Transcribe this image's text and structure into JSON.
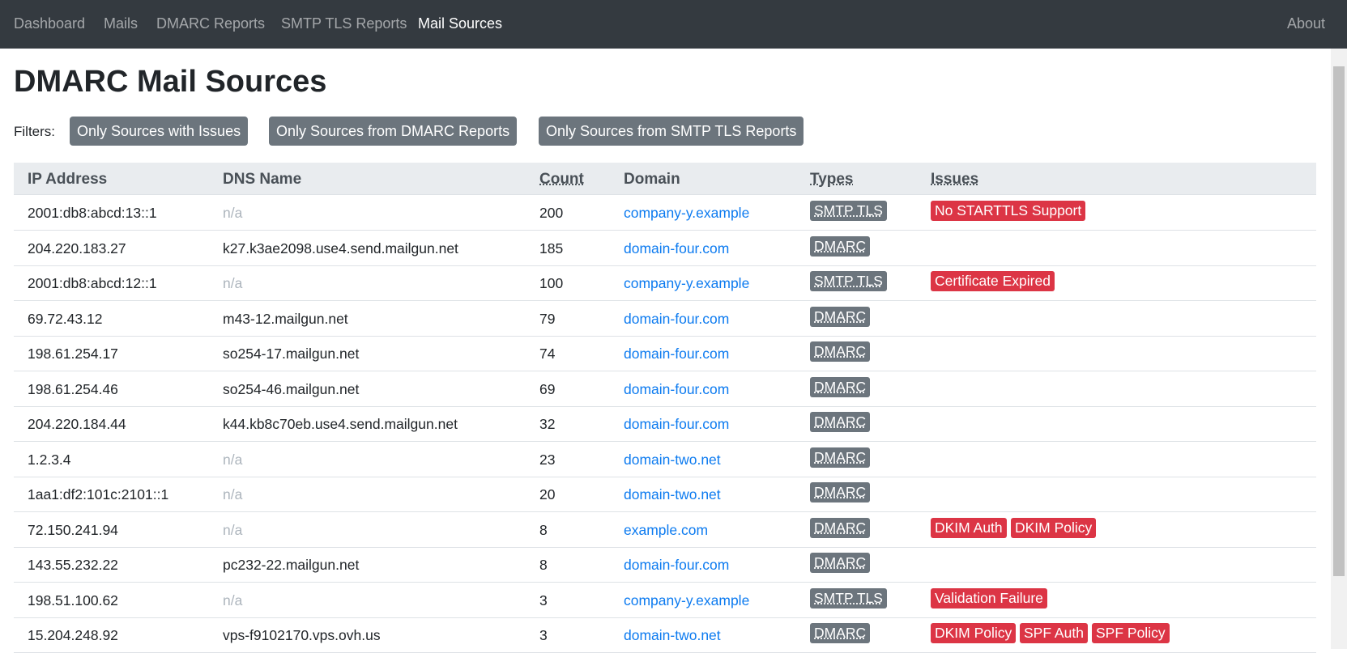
{
  "nav": {
    "items": [
      "Dashboard",
      "Mails",
      "DMARC Reports",
      "SMTP TLS Reports",
      "Mail Sources"
    ],
    "active": 4,
    "about": "About"
  },
  "header": {
    "title": "DMARC Mail Sources"
  },
  "filters": {
    "label": "Filters:",
    "buttons": [
      "Only Sources with Issues",
      "Only Sources from DMARC Reports",
      "Only Sources from SMTP TLS Reports"
    ]
  },
  "table": {
    "headers": [
      "IP Address",
      "DNS Name",
      "Count",
      "Domain",
      "Types",
      "Issues"
    ],
    "rows": [
      {
        "ip": "2001:db8:abcd:13::1",
        "dns": "n/a",
        "count": 200,
        "domain": "company-y.example",
        "types": [
          "SMTP TLS"
        ],
        "issues": [
          "No STARTTLS Support"
        ]
      },
      {
        "ip": "204.220.183.27",
        "dns": "k27.k3ae2098.use4.send.mailgun.net",
        "count": 185,
        "domain": "domain-four.com",
        "types": [
          "DMARC"
        ],
        "issues": []
      },
      {
        "ip": "2001:db8:abcd:12::1",
        "dns": "n/a",
        "count": 100,
        "domain": "company-y.example",
        "types": [
          "SMTP TLS"
        ],
        "issues": [
          "Certificate Expired"
        ]
      },
      {
        "ip": "69.72.43.12",
        "dns": "m43-12.mailgun.net",
        "count": 79,
        "domain": "domain-four.com",
        "types": [
          "DMARC"
        ],
        "issues": []
      },
      {
        "ip": "198.61.254.17",
        "dns": "so254-17.mailgun.net",
        "count": 74,
        "domain": "domain-four.com",
        "types": [
          "DMARC"
        ],
        "issues": []
      },
      {
        "ip": "198.61.254.46",
        "dns": "so254-46.mailgun.net",
        "count": 69,
        "domain": "domain-four.com",
        "types": [
          "DMARC"
        ],
        "issues": []
      },
      {
        "ip": "204.220.184.44",
        "dns": "k44.kb8c70eb.use4.send.mailgun.net",
        "count": 32,
        "domain": "domain-four.com",
        "types": [
          "DMARC"
        ],
        "issues": []
      },
      {
        "ip": "1.2.3.4",
        "dns": "n/a",
        "count": 23,
        "domain": "domain-two.net",
        "types": [
          "DMARC"
        ],
        "issues": []
      },
      {
        "ip": "1aa1:df2:101c:2101::1",
        "dns": "n/a",
        "count": 20,
        "domain": "domain-two.net",
        "types": [
          "DMARC"
        ],
        "issues": []
      },
      {
        "ip": "72.150.241.94",
        "dns": "n/a",
        "count": 8,
        "domain": "example.com",
        "types": [
          "DMARC"
        ],
        "issues": [
          "DKIM Auth",
          "DKIM Policy"
        ]
      },
      {
        "ip": "143.55.232.22",
        "dns": "pc232-22.mailgun.net",
        "count": 8,
        "domain": "domain-four.com",
        "types": [
          "DMARC"
        ],
        "issues": []
      },
      {
        "ip": "198.51.100.62",
        "dns": "n/a",
        "count": 3,
        "domain": "company-y.example",
        "types": [
          "SMTP TLS"
        ],
        "issues": [
          "Validation Failure"
        ]
      },
      {
        "ip": "15.204.248.92",
        "dns": "vps-f9102170.vps.ovh.us",
        "count": 3,
        "domain": "domain-two.net",
        "types": [
          "DMARC"
        ],
        "issues": [
          "DKIM Policy",
          "SPF Auth",
          "SPF Policy"
        ]
      }
    ]
  }
}
